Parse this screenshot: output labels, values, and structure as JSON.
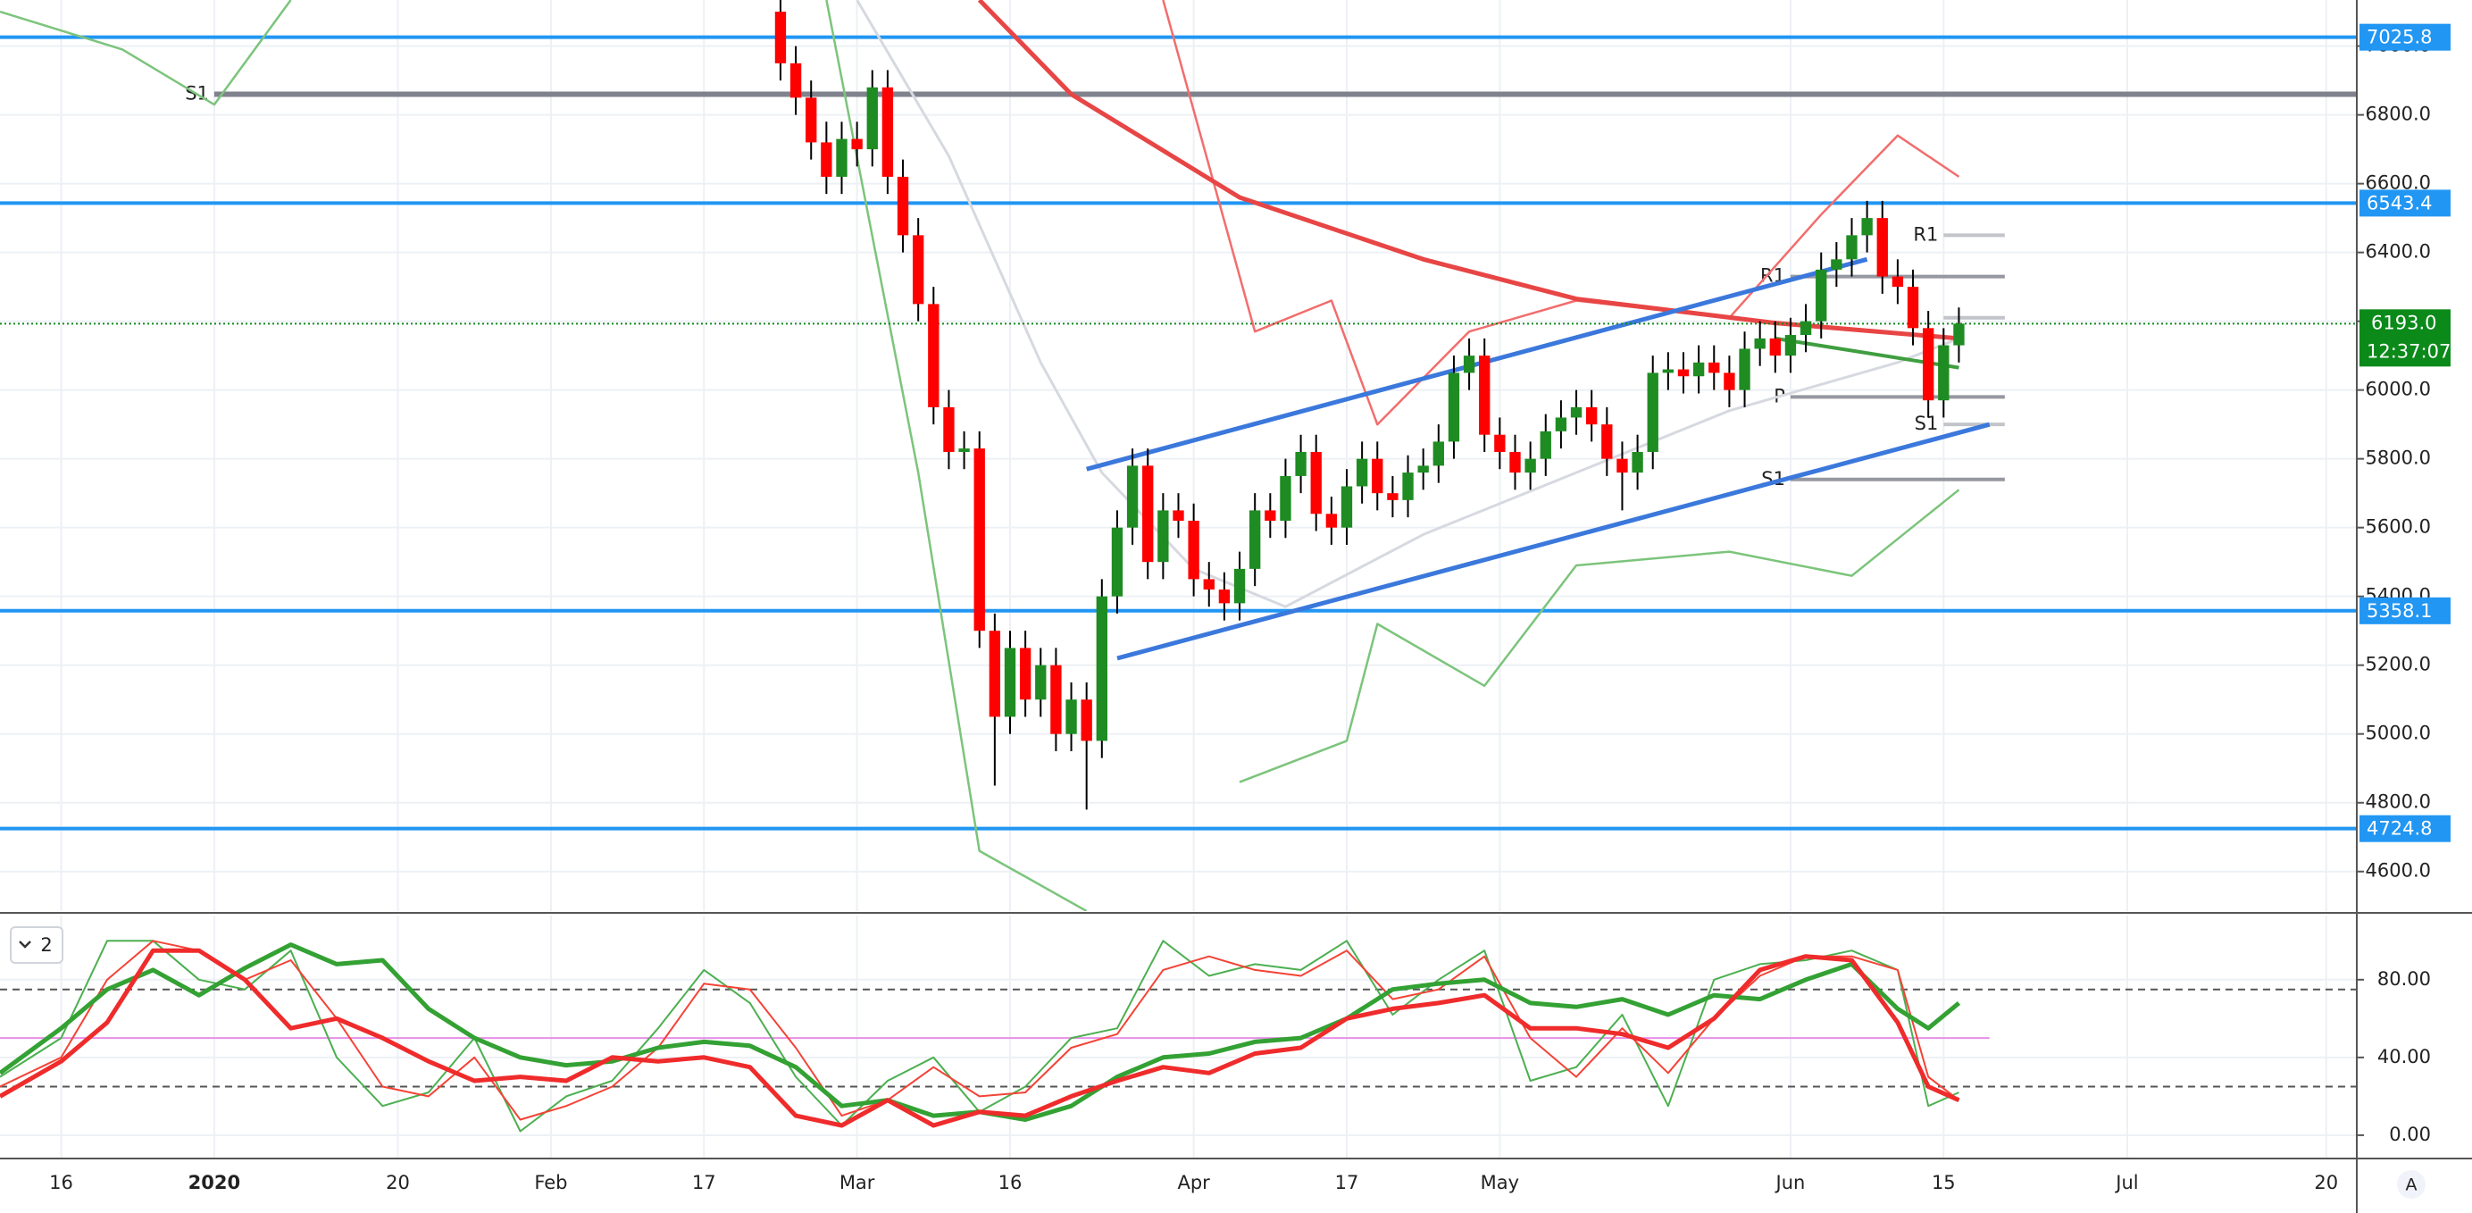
{
  "chart_data": [
    {
      "type": "candlestick",
      "xlim": [
        -4,
        150
      ],
      "ylim": [
        4485,
        7134
      ],
      "xticks": [
        {
          "value": 0,
          "label": "16"
        },
        {
          "value": 10,
          "label": "2020",
          "bold": true
        },
        {
          "value": 22,
          "label": "20"
        },
        {
          "value": 32,
          "label": "Feb"
        },
        {
          "value": 42,
          "label": "17"
        },
        {
          "value": 52,
          "label": "Mar"
        },
        {
          "value": 62,
          "label": "16"
        },
        {
          "value": 74,
          "label": "Apr"
        },
        {
          "value": 84,
          "label": "17"
        },
        {
          "value": 94,
          "label": "May"
        },
        {
          "value": 113,
          "label": "Jun"
        },
        {
          "value": 123,
          "label": "15"
        },
        {
          "value": 135,
          "label": "Jul"
        },
        {
          "value": 148,
          "label": "20"
        }
      ],
      "yticks": [
        {
          "value": 4600,
          "label": "4600.0"
        },
        {
          "value": 4800,
          "label": "4800.0"
        },
        {
          "value": 5000,
          "label": "5000.0"
        },
        {
          "value": 5200,
          "label": "5200.0"
        },
        {
          "value": 5400,
          "label": "5400.0"
        },
        {
          "value": 5600,
          "label": "5600.0"
        },
        {
          "value": 5800,
          "label": "5800.0"
        },
        {
          "value": 6000,
          "label": "6000.0"
        },
        {
          "value": 6200,
          "label": "6200.0"
        },
        {
          "value": 6400,
          "label": "6400.0"
        },
        {
          "value": 6600,
          "label": "6600.0"
        },
        {
          "value": 6800,
          "label": "6800.0"
        },
        {
          "value": 7000,
          "label": "7000.0"
        }
      ],
      "grid": true,
      "colors": {
        "up": "#1e8c22",
        "down": "#ff0000"
      },
      "x": [
        47,
        48,
        49,
        50,
        51,
        52,
        53,
        54,
        55,
        56,
        57,
        58,
        59,
        60,
        61,
        62,
        63,
        64,
        65,
        66,
        67,
        68,
        69,
        70,
        71,
        72,
        73,
        74,
        75,
        76,
        77,
        78,
        79,
        80,
        81,
        82,
        83,
        84,
        85,
        86,
        87,
        88,
        89,
        90,
        91,
        92,
        93,
        94,
        95,
        96,
        97,
        98,
        99,
        100,
        101,
        102,
        103,
        104,
        105,
        106,
        107,
        108,
        109,
        110,
        111,
        112,
        113,
        114,
        115,
        116,
        117,
        118,
        119,
        120,
        121,
        122,
        123,
        124
      ],
      "open": [
        7100,
        6950,
        6850,
        6720,
        6620,
        6730,
        6700,
        6880,
        6620,
        6450,
        6250,
        5950,
        5820,
        5830,
        5300,
        5050,
        5250,
        5100,
        5200,
        5000,
        5100,
        4980,
        5400,
        5600,
        5780,
        5500,
        5650,
        5620,
        5450,
        5420,
        5380,
        5480,
        5650,
        5620,
        5750,
        5820,
        5640,
        5600,
        5720,
        5800,
        5700,
        5680,
        5760,
        5780,
        5850,
        6050,
        6100,
        5870,
        5820,
        5760,
        5800,
        5880,
        5920,
        5950,
        5900,
        5800,
        5760,
        5820,
        6050,
        6060,
        6040,
        6080,
        6050,
        6000,
        6120,
        6150,
        6100,
        6160,
        6200,
        6350,
        6380,
        6450,
        6500,
        6330,
        6300,
        6180,
        5970,
        6130
      ],
      "high": [
        7150,
        7000,
        6900,
        6780,
        6780,
        6780,
        6930,
        6930,
        6670,
        6500,
        6300,
        6000,
        5880,
        5880,
        5350,
        5300,
        5300,
        5250,
        5250,
        5150,
        5150,
        5450,
        5650,
        5830,
        5830,
        5700,
        5700,
        5670,
        5500,
        5470,
        5530,
        5700,
        5700,
        5800,
        5870,
        5870,
        5690,
        5770,
        5850,
        5850,
        5750,
        5810,
        5830,
        5900,
        6100,
        6150,
        6150,
        5920,
        5870,
        5850,
        5930,
        5970,
        6000,
        6000,
        5950,
        5850,
        5870,
        6100,
        6110,
        6110,
        6130,
        6130,
        6100,
        6170,
        6200,
        6200,
        6210,
        6250,
        6400,
        6430,
        6500,
        6550,
        6550,
        6380,
        6350,
        6230,
        6180,
        6240
      ],
      "low": [
        6900,
        6800,
        6670,
        6570,
        6570,
        6650,
        6650,
        6570,
        6400,
        6200,
        5900,
        5770,
        5770,
        5250,
        4850,
        5000,
        5050,
        5050,
        4950,
        4950,
        4780,
        4930,
        5350,
        5550,
        5450,
        5450,
        5570,
        5400,
        5370,
        5330,
        5330,
        5430,
        5570,
        5570,
        5700,
        5590,
        5550,
        5550,
        5670,
        5650,
        5630,
        5630,
        5710,
        5730,
        5800,
        6000,
        5820,
        5770,
        5710,
        5710,
        5750,
        5830,
        5870,
        5850,
        5750,
        5650,
        5710,
        5770,
        6000,
        5990,
        5990,
        6000,
        5950,
        5950,
        6070,
        6050,
        6050,
        6110,
        6150,
        6300,
        6330,
        6400,
        6280,
        6250,
        6130,
        5920,
        5920,
        6080
      ],
      "close": [
        6950,
        6850,
        6720,
        6620,
        6730,
        6700,
        6880,
        6620,
        6450,
        6250,
        5950,
        5820,
        5830,
        5300,
        5050,
        5250,
        5100,
        5200,
        5000,
        5100,
        4980,
        5400,
        5600,
        5780,
        5500,
        5650,
        5620,
        5450,
        5420,
        5380,
        5480,
        5650,
        5620,
        5750,
        5820,
        5640,
        5600,
        5720,
        5800,
        5700,
        5680,
        5760,
        5780,
        5850,
        6050,
        6100,
        5870,
        5820,
        5760,
        5800,
        5880,
        5920,
        5950,
        5900,
        5800,
        5760,
        5820,
        6050,
        6060,
        6040,
        6080,
        6050,
        6000,
        6120,
        6150,
        6100,
        6160,
        6200,
        6350,
        6380,
        6450,
        6500,
        6330,
        6300,
        6180,
        5970,
        6130,
        6193
      ],
      "lines": [
        {
          "color": "#d6d9e0",
          "width": 3,
          "x": [
            52,
            58,
            64,
            68,
            74,
            80,
            89,
            99,
            109,
            120,
            124
          ],
          "values": [
            7134,
            6680,
            6080,
            5760,
            5480,
            5370,
            5580,
            5760,
            5940,
            6080,
            6150
          ]
        },
        {
          "color": "#f26d6d",
          "width": 2.5,
          "x": [
            72,
            78,
            83,
            86,
            92,
            99,
            109,
            115,
            120,
            124
          ],
          "values": [
            7134,
            6170,
            6260,
            5900,
            6170,
            6260,
            6210,
            6510,
            6740,
            6620
          ]
        },
        {
          "color": "#7cc47c",
          "width": 2.5,
          "x": [
            50,
            56,
            60,
            67,
            68,
            77,
            84,
            86,
            93,
            99,
            109,
            117,
            124
          ],
          "values": [
            7134,
            5760,
            4660,
            4485,
            null,
            4860,
            4980,
            5320,
            5140,
            5490,
            5530,
            5460,
            5710
          ]
        },
        {
          "color": "#7cc47c",
          "width": 2.5,
          "x": [
            -4,
            4,
            10,
            15
          ],
          "values": [
            7100,
            6990,
            6830,
            7134
          ]
        },
        {
          "color": "#e84545",
          "width": 5,
          "x": [
            60,
            66,
            77,
            89,
            99,
            112,
            124
          ],
          "values": [
            7134,
            6860,
            6560,
            6380,
            6265,
            6195,
            6150
          ]
        },
        {
          "color": "#3f9e3f",
          "width": 4,
          "x": [
            112,
            124
          ],
          "values": [
            6150,
            6065
          ]
        },
        {
          "color": "#3b78dc",
          "width": 5,
          "x": [
            67,
            118
          ],
          "values": [
            5770,
            6380
          ]
        },
        {
          "color": "#3b78dc",
          "width": 5,
          "x": [
            69,
            126
          ],
          "values": [
            5220,
            5900
          ]
        }
      ],
      "pivots": [
        {
          "label": "S1",
          "value": 6860,
          "x": [
            10,
            150
          ],
          "color": "#80838d"
        },
        {
          "label": "R1",
          "value": 6330,
          "x": [
            113,
            127
          ],
          "color": "#9598a1"
        },
        {
          "label": "P",
          "value": 5980,
          "x": [
            113,
            127
          ],
          "color": "#9598a1"
        },
        {
          "label": "S1",
          "value": 5740,
          "x": [
            113,
            127
          ],
          "color": "#9598a1"
        },
        {
          "label": "R1",
          "value": 6450,
          "x": [
            123,
            127
          ],
          "color": "#c2c4ca"
        },
        {
          "label": null,
          "value": 6210,
          "x": [
            123,
            127
          ],
          "color": "#c2c4ca"
        },
        {
          "label": "S1",
          "value": 5900,
          "x": [
            123,
            127
          ],
          "color": "#c2c4ca"
        }
      ],
      "levels": [
        7025.8,
        6543.4,
        5358.1,
        4724.8
      ],
      "level_color": "#2196f3",
      "last": {
        "value": 6193,
        "label": "6193.0"
      },
      "countdown": "12:37:07",
      "last_color": "#0b8a1a"
    },
    {
      "type": "line",
      "pane_label": "2",
      "ylim": [
        -12,
        113
      ],
      "yticks": [
        {
          "value": 0,
          "label": "0.00"
        },
        {
          "value": 40,
          "label": "40.00"
        },
        {
          "value": 80,
          "label": "80.00"
        }
      ],
      "levels": [
        {
          "value": 75,
          "color": "#555",
          "dashed": true
        },
        {
          "value": 50,
          "color": "#e78fe7",
          "dashed": false
        },
        {
          "value": 25,
          "color": "#555",
          "dashed": true
        }
      ],
      "x": [
        -4,
        0,
        3,
        6,
        9,
        12,
        15,
        18,
        21,
        24,
        27,
        30,
        33,
        36,
        39,
        42,
        45,
        48,
        51,
        54,
        57,
        60,
        63,
        66,
        69,
        72,
        75,
        78,
        81,
        84,
        87,
        90,
        93,
        96,
        99,
        102,
        105,
        108,
        111,
        114,
        117,
        120,
        122,
        124
      ],
      "series": [
        {
          "color": "#4caf50",
          "width": 2,
          "values": [
            30,
            50,
            100,
            100,
            80,
            75,
            95,
            40,
            15,
            22,
            50,
            2,
            20,
            28,
            55,
            85,
            68,
            30,
            5,
            28,
            40,
            12,
            25,
            50,
            55,
            100,
            82,
            88,
            85,
            100,
            62,
            80,
            95,
            28,
            35,
            62,
            15,
            80,
            88,
            90,
            95,
            85,
            15,
            22
          ]
        },
        {
          "color": "#f44336",
          "width": 2,
          "values": [
            25,
            40,
            80,
            100,
            95,
            80,
            90,
            60,
            25,
            20,
            40,
            8,
            15,
            25,
            45,
            78,
            75,
            45,
            10,
            18,
            35,
            20,
            22,
            45,
            52,
            85,
            92,
            85,
            82,
            95,
            70,
            75,
            92,
            50,
            30,
            55,
            32,
            60,
            82,
            92,
            92,
            85,
            30,
            18
          ]
        },
        {
          "color": "#33a133",
          "width": 5,
          "values": [
            32,
            55,
            75,
            85,
            72,
            86,
            98,
            88,
            90,
            65,
            50,
            40,
            36,
            38,
            45,
            48,
            46,
            35,
            15,
            18,
            10,
            12,
            8,
            15,
            30,
            40,
            42,
            48,
            50,
            60,
            75,
            78,
            80,
            68,
            66,
            70,
            62,
            72,
            70,
            80,
            88,
            65,
            55,
            68
          ]
        },
        {
          "color": "#ef2b2b",
          "width": 5,
          "values": [
            20,
            38,
            58,
            95,
            95,
            80,
            55,
            60,
            50,
            38,
            28,
            30,
            28,
            40,
            38,
            40,
            35,
            10,
            5,
            18,
            5,
            12,
            10,
            20,
            28,
            35,
            32,
            42,
            45,
            60,
            65,
            68,
            72,
            55,
            55,
            52,
            45,
            60,
            85,
            92,
            90,
            58,
            25,
            18
          ]
        }
      ]
    }
  ],
  "ui": {
    "scale_button": "A"
  }
}
